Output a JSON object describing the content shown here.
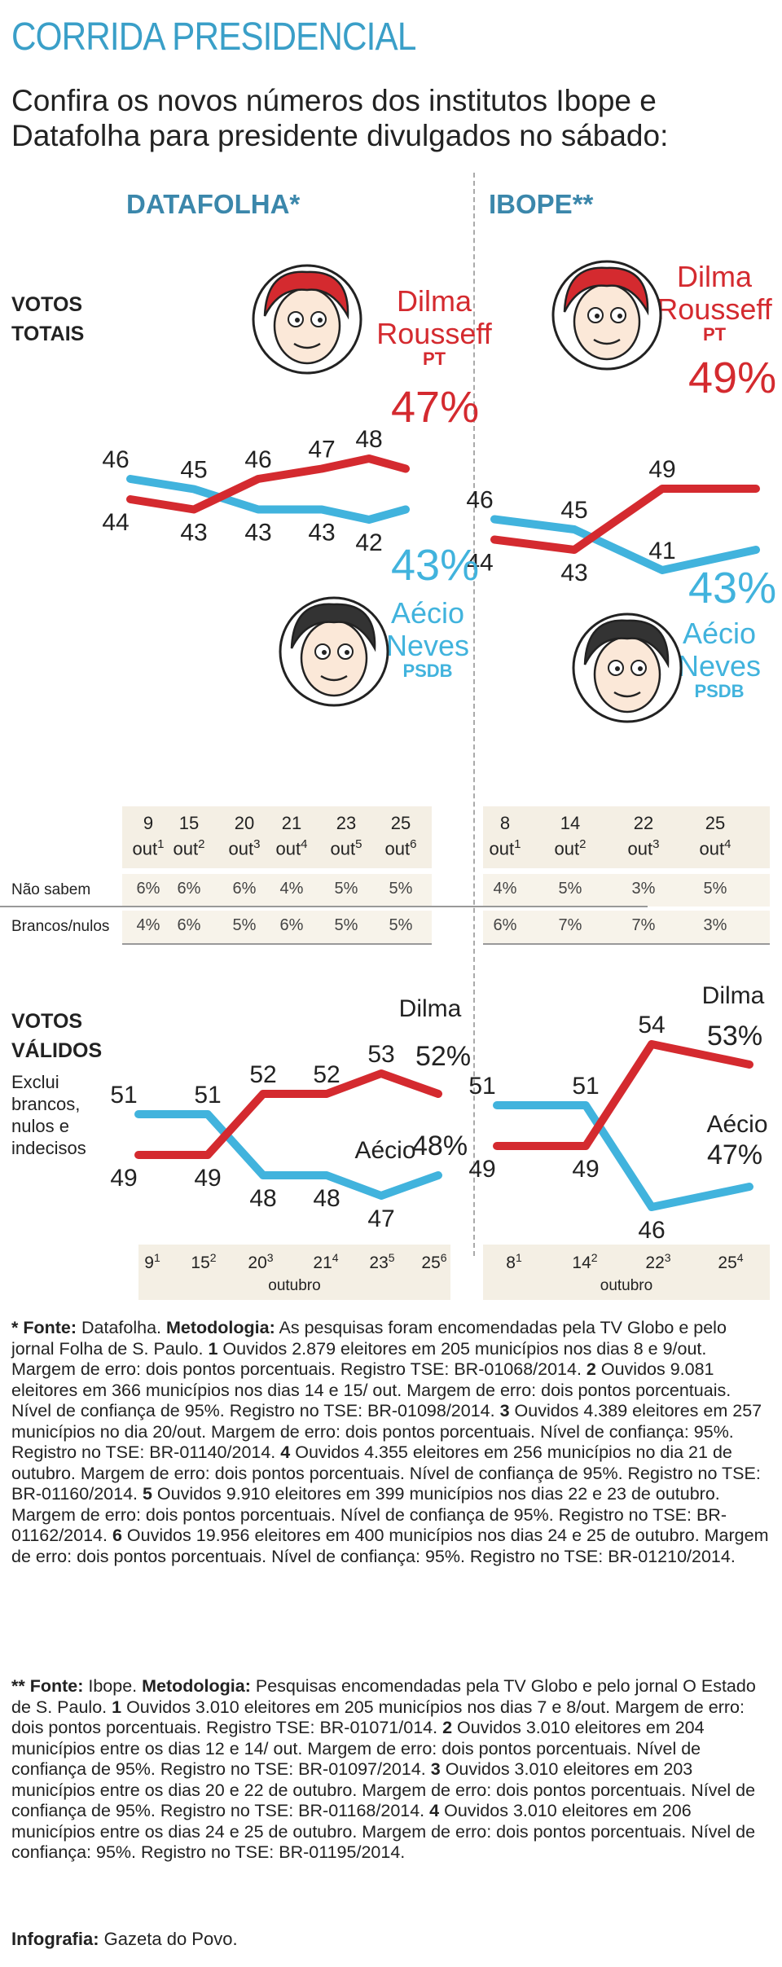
{
  "header": {
    "title": "CORRIDA PRESIDENCIAL",
    "subtitle": "Confira os novos números dos institutos Ibope e Datafolha para presidente divulgados no sábado:"
  },
  "colors": {
    "dilma": "#d42a2f",
    "aecio": "#41b3dd",
    "accent": "#3b87ab",
    "table_bg": "#f4efe4"
  },
  "candidates": {
    "dilma": {
      "name1": "Dilma",
      "name2": "Rousseff",
      "party": "PT",
      "short": "Dilma"
    },
    "aecio": {
      "name1": "Aécio",
      "name2": "Neves",
      "party": "PSDB",
      "short": "Aécio"
    }
  },
  "sections": {
    "votos_totais": [
      "VOTOS",
      "TOTAIS"
    ],
    "votos_validos": [
      "VOTOS",
      "VÁLIDOS"
    ],
    "validos_note": [
      "Exclui",
      "brancos,",
      "nulos e",
      "indecisos"
    ],
    "month": "outubro"
  },
  "chart_data": [
    {
      "type": "line",
      "source": "DATAFOLHA*",
      "metric": "VOTOS TOTAIS",
      "categories": [
        {
          "day": "9",
          "mon": "out",
          "sup": "1"
        },
        {
          "day": "15",
          "mon": "out",
          "sup": "2"
        },
        {
          "day": "20",
          "mon": "out",
          "sup": "3"
        },
        {
          "day": "21",
          "mon": "out",
          "sup": "4"
        },
        {
          "day": "23",
          "mon": "out",
          "sup": "5"
        },
        {
          "day": "25",
          "mon": "out",
          "sup": "6"
        }
      ],
      "series": [
        {
          "name": "Dilma Rousseff",
          "values": [
            44,
            43,
            46,
            47,
            48,
            47
          ],
          "final_label": "47%"
        },
        {
          "name": "Aécio Neves",
          "values": [
            46,
            45,
            43,
            43,
            42,
            43
          ],
          "final_label": "43%"
        }
      ],
      "table": {
        "rows": [
          {
            "label": "Não sabem",
            "values": [
              "6%",
              "6%",
              "6%",
              "4%",
              "5%",
              "5%"
            ]
          },
          {
            "label": "Brancos/nulos",
            "values": [
              "4%",
              "6%",
              "5%",
              "6%",
              "5%",
              "5%"
            ]
          }
        ]
      }
    },
    {
      "type": "line",
      "source": "IBOPE**",
      "metric": "VOTOS TOTAIS",
      "categories": [
        {
          "day": "8",
          "mon": "out",
          "sup": "1"
        },
        {
          "day": "14",
          "mon": "out",
          "sup": "2"
        },
        {
          "day": "22",
          "mon": "out",
          "sup": "3"
        },
        {
          "day": "25",
          "mon": "out",
          "sup": "4"
        }
      ],
      "series": [
        {
          "name": "Dilma Rousseff",
          "values": [
            44,
            43,
            49,
            49
          ],
          "final_label": "49%"
        },
        {
          "name": "Aécio Neves",
          "values": [
            46,
            45,
            41,
            43
          ],
          "final_label": "43%"
        }
      ],
      "table": {
        "rows": [
          {
            "label": "Não sabem",
            "values": [
              "4%",
              "5%",
              "3%",
              "5%"
            ]
          },
          {
            "label": "Brancos/nulos",
            "values": [
              "6%",
              "7%",
              "7%",
              "3%"
            ]
          }
        ]
      }
    },
    {
      "type": "line",
      "source": "DATAFOLHA*",
      "metric": "VOTOS VÁLIDOS",
      "categories": [
        {
          "day": "9",
          "sup": "1"
        },
        {
          "day": "15",
          "sup": "2"
        },
        {
          "day": "20",
          "sup": "3"
        },
        {
          "day": "21",
          "sup": "4"
        },
        {
          "day": "23",
          "sup": "5"
        },
        {
          "day": "25",
          "sup": "6"
        }
      ],
      "series": [
        {
          "name": "Dilma",
          "values": [
            49,
            49,
            52,
            52,
            53,
            52
          ],
          "final_label": "52%"
        },
        {
          "name": "Aécio",
          "values": [
            51,
            51,
            48,
            48,
            47,
            48
          ],
          "final_label": "48%"
        }
      ]
    },
    {
      "type": "line",
      "source": "IBOPE**",
      "metric": "VOTOS VÁLIDOS",
      "categories": [
        {
          "day": "8",
          "sup": "1"
        },
        {
          "day": "14",
          "sup": "2"
        },
        {
          "day": "22",
          "sup": "3"
        },
        {
          "day": "25",
          "sup": "4"
        }
      ],
      "series": [
        {
          "name": "Dilma",
          "values": [
            49,
            49,
            54,
            53
          ],
          "final_label": "53%"
        },
        {
          "name": "Aécio",
          "values": [
            51,
            51,
            46,
            47
          ],
          "final_label": "47%"
        }
      ]
    }
  ],
  "footnotes": {
    "datafolha": {
      "marker": "* Fonte:",
      "source": " Datafolha.",
      "method_label": " Metodologia:",
      "intro": " As pesquisas foram encomendadas pela TV Globo e pelo jornal Folha de S. Paulo.",
      "items": [
        {
          "n": "1",
          "text": " Ouvidos 2.879 eleitores em 205 municípios nos dias 8 e 9/out. Margem de erro: dois pontos porcentuais. Registro TSE: BR-01068/2014."
        },
        {
          "n": "2",
          "text": " Ouvidos 9.081 eleitores em 366 municípios nos dias 14 e 15/ out. Margem de erro: dois pontos porcentuais. Nível de confiança de 95%. Registro no TSE: BR-01098/2014."
        },
        {
          "n": "3",
          "text": " Ouvidos 4.389 eleitores em 257 municípios no dia 20/out. Margem de erro: dois pontos porcentuais. Nível de confiança: 95%. Registro no TSE: BR-01140/2014."
        },
        {
          "n": "4",
          "text": " Ouvidos 4.355 eleitores em 256 municípios no dia 21 de outubro. Margem de erro: dois pontos porcentuais. Nível de confiança de 95%. Registro no TSE: BR-01160/2014."
        },
        {
          "n": "5",
          "text": " Ouvidos 9.910 eleitores em 399 municípios nos dias 22 e 23 de outubro. Margem de erro: dois pontos porcentuais. Nível de confiança de 95%. Registro no TSE: BR-01162/2014."
        },
        {
          "n": "6",
          "text": " Ouvidos 19.956 eleitores em 400 municípios nos dias 24 e 25 de outubro. Margem de erro: dois pontos porcentuais. Nível de confiança: 95%. Registro no TSE: BR-01210/2014."
        }
      ]
    },
    "ibope": {
      "marker": "** Fonte:",
      "source": " Ibope.",
      "method_label": " Metodologia:",
      "intro": " Pesquisas encomendadas pela TV Globo e pelo jornal O Estado de S. Paulo.",
      "items": [
        {
          "n": "1",
          "text": " Ouvidos 3.010 eleitores em 205 municípios nos dias 7 e 8/out. Margem de erro: dois pontos porcentuais. Registro TSE: BR-01071/014."
        },
        {
          "n": "2",
          "text": " Ouvidos 3.010 eleitores em 204 municípios entre os dias 12 e 14/ out. Margem de erro: dois pontos porcentuais. Nível de confiança de 95%. Registro no TSE: BR-01097/2014."
        },
        {
          "n": "3",
          "text": " Ouvidos 3.010 eleitores em 203 municípios entre os dias 20 e 22 de outubro. Margem de erro: dois pontos porcentuais. Nível de confiança de 95%. Registro no TSE: BR-01168/2014."
        },
        {
          "n": "4",
          "text": " Ouvidos 3.010 eleitores em 206 municípios entre os dias 24 e 25 de outubro. Margem de erro: dois pontos porcentuais. Nível de confiança: 95%. Registro no TSE: BR-01195/2014."
        }
      ]
    },
    "credit_label": "Infografia:",
    "credit_value": " Gazeta do Povo."
  }
}
